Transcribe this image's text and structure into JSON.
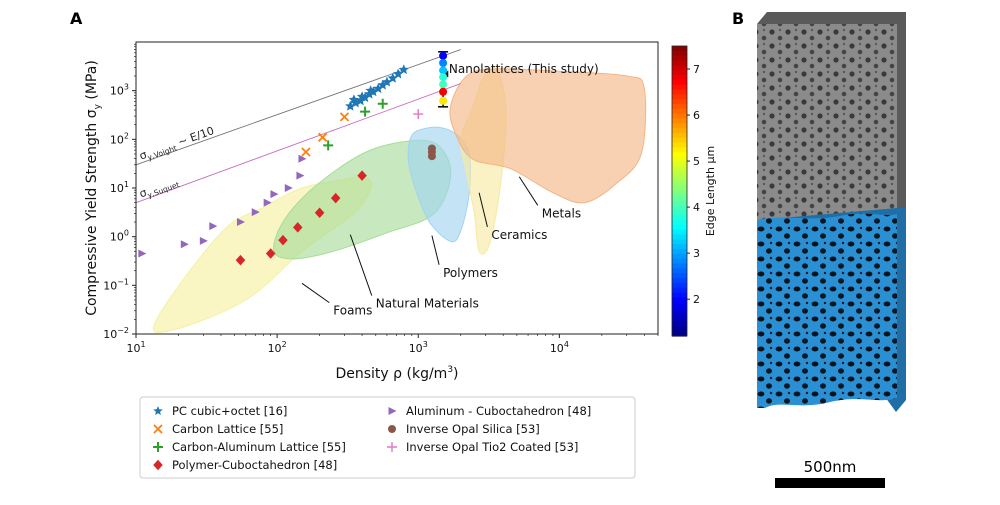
{
  "panel_a_letter": "A",
  "panel_b_letter": "B",
  "chart_data": {
    "type": "scatter",
    "xlabel": "Density ρ (kg/m³)",
    "ylabel": "Compressive Yield Strength σy (MPa)",
    "x_scale": "log",
    "y_scale": "log",
    "xlim": [
      10,
      50000
    ],
    "ylim": [
      0.01,
      10000
    ],
    "x_ticks": [
      {
        "v": 10,
        "base": "10",
        "exp": "1"
      },
      {
        "v": 100,
        "base": "10",
        "exp": "2"
      },
      {
        "v": 1000,
        "base": "10",
        "exp": "3"
      },
      {
        "v": 10000,
        "base": "10",
        "exp": "4"
      }
    ],
    "y_ticks": [
      {
        "v": 0.01,
        "base": "10",
        "exp": "−2"
      },
      {
        "v": 0.1,
        "base": "10",
        "exp": "−1"
      },
      {
        "v": 1,
        "base": "10",
        "exp": "0"
      },
      {
        "v": 10,
        "base": "10",
        "exp": "1"
      },
      {
        "v": 100,
        "base": "10",
        "exp": "2"
      },
      {
        "v": 1000,
        "base": "10",
        "exp": "3"
      }
    ],
    "grid": false,
    "legend_placement": "below",
    "regions": [
      {
        "name": "Foams",
        "label": "Foams",
        "color": "#f5f0a0",
        "points": [
          [
            14,
            0.02
          ],
          [
            40,
            1.2
          ],
          [
            80,
            4
          ],
          [
            150,
            10
          ],
          [
            300,
            15
          ],
          [
            420,
            17
          ],
          [
            460,
            10
          ],
          [
            350,
            3
          ],
          [
            150,
            0.5
          ],
          [
            60,
            0.05
          ],
          [
            18,
            0.012
          ]
        ]
      },
      {
        "name": "Natural Materials",
        "label": "Natural Materials",
        "color": "#a7dc98",
        "points": [
          [
            95,
            0.5
          ],
          [
            110,
            2
          ],
          [
            180,
            10
          ],
          [
            400,
            50
          ],
          [
            800,
            90
          ],
          [
            1350,
            80
          ],
          [
            1700,
            20
          ],
          [
            1300,
            3
          ],
          [
            600,
            1.2
          ],
          [
            250,
            0.5
          ],
          [
            130,
            0.35
          ]
        ]
      },
      {
        "name": "Polymers",
        "label": "Polymers",
        "color": "#9fd4f0",
        "points": [
          [
            900,
            120
          ],
          [
            1150,
            170
          ],
          [
            1500,
            170
          ],
          [
            1900,
            120
          ],
          [
            2300,
            50
          ],
          [
            2300,
            8
          ],
          [
            2000,
            1.3
          ],
          [
            1700,
            0.8
          ],
          [
            1200,
            2
          ],
          [
            950,
            10
          ],
          [
            850,
            40
          ]
        ]
      },
      {
        "name": "Ceramics",
        "label": "Ceramics",
        "color": "#f7eaa0",
        "points": [
          [
            2000,
            100
          ],
          [
            2400,
            400
          ],
          [
            2800,
            1500
          ],
          [
            3300,
            3000
          ],
          [
            3800,
            2000
          ],
          [
            4200,
            300
          ],
          [
            3800,
            10
          ],
          [
            3200,
            0.7
          ],
          [
            2700,
            0.5
          ],
          [
            2500,
            3
          ],
          [
            2200,
            20
          ]
        ]
      },
      {
        "name": "Metals",
        "label": "Metals",
        "color": "#f3b483",
        "points": [
          [
            1700,
            500
          ],
          [
            2200,
            2000
          ],
          [
            3500,
            2800
          ],
          [
            10000,
            2500
          ],
          [
            30000,
            2000
          ],
          [
            40000,
            1100
          ],
          [
            38000,
            50
          ],
          [
            25000,
            12
          ],
          [
            15000,
            5
          ],
          [
            9000,
            8
          ],
          [
            4500,
            25
          ],
          [
            2400,
            40
          ],
          [
            1800,
            150
          ]
        ]
      }
    ],
    "reference_lines": [
      {
        "name": "σy,Voight ~ E/10",
        "label_main": "σ",
        "label_sub": "y,Voight",
        "label_tail": " ~ E/10",
        "color": "#777777",
        "points": [
          [
            10,
            30
          ],
          [
            2000,
            7000
          ]
        ]
      },
      {
        "name": "σy,Suquet",
        "label_main": "σ",
        "label_sub": "y,Suquet",
        "label_tail": "",
        "color": "#c56fbe",
        "points": [
          [
            10,
            5
          ],
          [
            2000,
            1400
          ]
        ]
      }
    ],
    "annotations": [
      {
        "text": "Foams",
        "label_at": [
          250,
          0.025
        ],
        "arrow_to": [
          150,
          0.11
        ]
      },
      {
        "text": "Natural Materials",
        "label_at": [
          500,
          0.035
        ],
        "arrow_to": [
          330,
          1.1
        ]
      },
      {
        "text": "Polymers",
        "label_at": [
          1500,
          0.15
        ],
        "arrow_to": [
          1250,
          1.05
        ]
      },
      {
        "text": "Ceramics",
        "label_at": [
          3300,
          0.9
        ],
        "arrow_to": [
          2700,
          8
        ]
      },
      {
        "text": "Metals",
        "label_at": [
          7500,
          2.5
        ],
        "arrow_to": [
          5200,
          17
        ]
      },
      {
        "text": "Nanolattices (This study)",
        "label_at": [
          1650,
          2300
        ],
        "arrow_to": [
          1480,
          2200
        ]
      }
    ],
    "series": [
      {
        "name": "PC cubic+octet [16]",
        "marker": "star",
        "color": "#1f77b4",
        "x": [
          330,
          360,
          390,
          420,
          450,
          480,
          520,
          560,
          600,
          660,
          720,
          790,
          350,
          400,
          460
        ],
        "y": [
          480,
          560,
          620,
          720,
          850,
          950,
          1100,
          1300,
          1500,
          1800,
          2200,
          2700,
          650,
          750,
          1000
        ]
      },
      {
        "name": "Carbon Lattice [55]",
        "marker": "x",
        "color": "#ff7f0e",
        "x": [
          160,
          210,
          300
        ],
        "y": [
          55,
          110,
          290
        ]
      },
      {
        "name": "Carbon-Aluminum Lattice [55]",
        "marker": "plus",
        "color": "#2ca02c",
        "x": [
          230,
          420,
          560
        ],
        "y": [
          75,
          370,
          540
        ]
      },
      {
        "name": "Polymer-Cuboctahedron [48]",
        "marker": "diamond",
        "color": "#d62728",
        "x": [
          55,
          90,
          110,
          140,
          200,
          260,
          400
        ],
        "y": [
          0.33,
          0.45,
          0.85,
          1.55,
          3.1,
          6.2,
          18
        ]
      },
      {
        "name": "Aluminum - Cuboctahedron [48]",
        "marker": "triangle-right",
        "color": "#9467bd",
        "x": [
          11,
          22,
          30,
          35,
          55,
          70,
          85,
          95,
          120,
          145,
          150
        ],
        "y": [
          0.45,
          0.7,
          0.82,
          1.65,
          2.0,
          3.2,
          5.0,
          7.5,
          10,
          18,
          40
        ]
      },
      {
        "name": "Inverse Opal Silica [53]",
        "marker": "circle",
        "color": "#8c564b",
        "x": [
          1250,
          1250,
          1250
        ],
        "y": [
          45,
          55,
          65
        ]
      },
      {
        "name": "Inverse Opal Tio2 Coated [53]",
        "marker": "plus-thin",
        "color": "#e377c2",
        "x": [
          1000
        ],
        "y": [
          330
        ]
      },
      {
        "name": "Nanolattices (This study)",
        "marker": "circle",
        "color": "colormap",
        "x": [
          1500,
          1500,
          1500,
          1500,
          1500,
          1500,
          1500
        ],
        "y": [
          5200,
          3700,
          2600,
          1900,
          1350,
          950,
          620
        ],
        "edge_length_um": [
          2.0,
          2.8,
          3.2,
          3.8,
          4.0,
          6.8,
          5.3
        ]
      }
    ],
    "colorbar": {
      "label": "Edge Length μm",
      "range": [
        1.2,
        7.5
      ],
      "ticks": [
        {
          "v": 2,
          "label": "2"
        },
        {
          "v": 3,
          "label": "3"
        },
        {
          "v": 4,
          "label": "4"
        },
        {
          "v": 5,
          "label": "5"
        },
        {
          "v": 6,
          "label": "6"
        },
        {
          "v": 7,
          "label": "7"
        }
      ]
    },
    "legend": [
      {
        "marker": "star",
        "color": "#1f77b4",
        "label": "PC cubic+octet [16]"
      },
      {
        "marker": "x",
        "color": "#ff7f0e",
        "label": "Carbon Lattice [55]"
      },
      {
        "marker": "plus",
        "color": "#2ca02c",
        "label": "Carbon-Aluminum Lattice [55]"
      },
      {
        "marker": "diamond",
        "color": "#d62728",
        "label": "Polymer-Cuboctahedron [48]"
      },
      {
        "marker": "triangle-right",
        "color": "#9467bd",
        "label": "Aluminum - Cuboctahedron [48]"
      },
      {
        "marker": "circle",
        "color": "#8c564b",
        "label": "Inverse Opal Silica [53]"
      },
      {
        "marker": "plus-thin",
        "color": "#e377c2",
        "label": "Inverse Opal Tio2 Coated [53]"
      }
    ]
  },
  "panel_b": {
    "scale_bar_label": "500nm",
    "top_color": "#8f8f8f",
    "bottom_color": "#2a8fd0"
  }
}
